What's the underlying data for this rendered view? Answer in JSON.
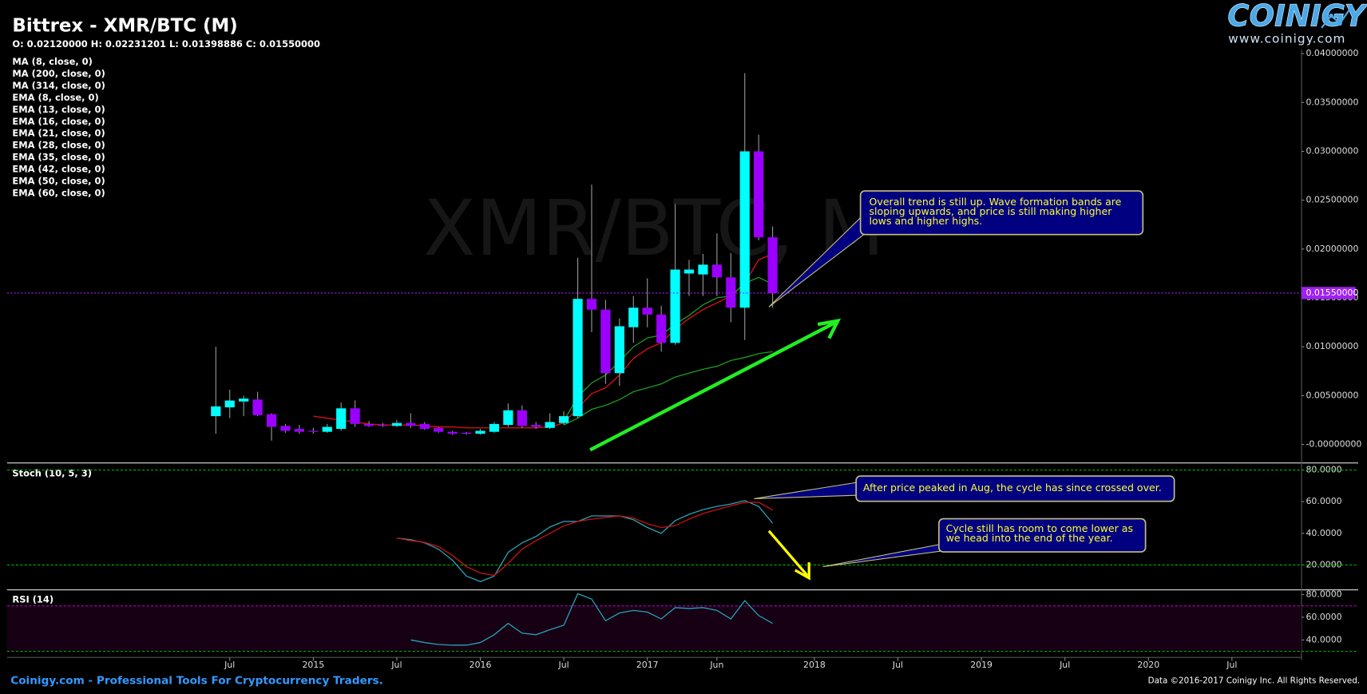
{
  "header": {
    "brand": "COINIGY",
    "url": "www.coinigy.com"
  },
  "chart_data": [
    {
      "type": "candlestick",
      "title": "Bittrex - XMR/BTC (M)",
      "subtitle": "O: 0.02120000 H: 0.02231201 L: 0.01398886 C: 0.01550000",
      "watermark": "XMR/BTC, M",
      "x": [
        "2014-06",
        "2014-07",
        "2014-08",
        "2014-09",
        "2014-10",
        "2014-11",
        "2014-12",
        "2015-01",
        "2015-02",
        "2015-03",
        "2015-04",
        "2015-05",
        "2015-06",
        "2015-07",
        "2015-08",
        "2015-09",
        "2015-10",
        "2015-11",
        "2015-12",
        "2016-01",
        "2016-02",
        "2016-03",
        "2016-04",
        "2016-05",
        "2016-06",
        "2016-07",
        "2016-08",
        "2016-09",
        "2016-10",
        "2016-11",
        "2016-12",
        "2017-01",
        "2017-02",
        "2017-03",
        "2017-04",
        "2017-05",
        "2017-06",
        "2017-07",
        "2017-08",
        "2017-09",
        "2017-10"
      ],
      "open": [
        0.0029,
        0.0038,
        0.0044,
        0.0046,
        0.0031,
        0.0019,
        0.0016,
        0.0014,
        0.0013,
        0.0016,
        0.0037,
        0.0021,
        0.002,
        0.0019,
        0.0022,
        0.0021,
        0.0017,
        0.0013,
        0.0012,
        0.0011,
        0.0013,
        0.002,
        0.0035,
        0.002,
        0.0017,
        0.0022,
        0.0029,
        0.0149,
        0.0138,
        0.0073,
        0.012,
        0.014,
        0.0133,
        0.0104,
        0.0175,
        0.0174,
        0.0184,
        0.0171,
        0.014,
        0.03,
        0.0212
      ],
      "high": [
        0.01,
        0.0056,
        0.005,
        0.0054,
        0.0032,
        0.0021,
        0.002,
        0.0017,
        0.0021,
        0.0043,
        0.0045,
        0.0024,
        0.0022,
        0.0025,
        0.0032,
        0.0023,
        0.0018,
        0.0014,
        0.0013,
        0.0016,
        0.0023,
        0.0042,
        0.004,
        0.0023,
        0.0032,
        0.0034,
        0.0191,
        0.0266,
        0.0148,
        0.0129,
        0.0152,
        0.017,
        0.0142,
        0.0246,
        0.0189,
        0.0195,
        0.0216,
        0.0196,
        0.038,
        0.0317,
        0.02231201
      ],
      "low": [
        0.0011,
        0.0027,
        0.0029,
        0.0029,
        0.0004,
        0.0012,
        0.0011,
        0.0011,
        0.0012,
        0.0014,
        0.0018,
        0.0018,
        0.0018,
        0.0018,
        0.0017,
        0.0015,
        0.0012,
        0.001,
        0.001,
        0.001,
        0.0012,
        0.0018,
        0.0017,
        0.0016,
        0.0016,
        0.002,
        0.0027,
        0.0115,
        0.0062,
        0.006,
        0.0104,
        0.012,
        0.0095,
        0.0102,
        0.0152,
        0.0152,
        0.0152,
        0.0125,
        0.0107,
        0.0209,
        0.01398886
      ],
      "close": [
        0.0039,
        0.0045,
        0.0047,
        0.003,
        0.0018,
        0.0014,
        0.0013,
        0.0013,
        0.0018,
        0.0037,
        0.0021,
        0.0019,
        0.0019,
        0.0022,
        0.0019,
        0.0016,
        0.0013,
        0.0011,
        0.0011,
        0.0014,
        0.0021,
        0.0035,
        0.0019,
        0.0018,
        0.0023,
        0.0029,
        0.0149,
        0.0138,
        0.0073,
        0.0121,
        0.014,
        0.0133,
        0.0104,
        0.0179,
        0.0179,
        0.0184,
        0.0171,
        0.014,
        0.03,
        0.0212,
        0.0155
      ],
      "up_color": "#00ffff",
      "down_color": "#9b00ff",
      "wick_color": "#9a9a9a",
      "series": [
        {
          "name": "MA (8, close, 0)",
          "color": "#e01010",
          "values": [
            null,
            null,
            null,
            null,
            null,
            null,
            null,
            0.0029,
            0.0027,
            0.0025,
            0.0023,
            0.0021,
            0.002,
            0.002,
            0.002,
            0.0019,
            0.0018,
            0.0018,
            0.0017,
            0.0017,
            0.0017,
            0.0017,
            0.0017,
            0.0017,
            0.0018,
            0.0022,
            0.0037,
            0.0052,
            0.0058,
            0.0071,
            0.0088,
            0.0098,
            0.0104,
            0.0118,
            0.0129,
            0.0138,
            0.0145,
            0.0152,
            0.0165,
            0.0189,
            0.0195
          ]
        },
        {
          "name": "MA (200, close, 0)"
        },
        {
          "name": "MA (314, close, 0)"
        },
        {
          "name": "EMA (8, close, 0)"
        },
        {
          "name": "EMA (13, close, 0)",
          "color": "#1f9a1f",
          "values": [
            null,
            null,
            null,
            null,
            null,
            null,
            null,
            null,
            null,
            null,
            null,
            null,
            null,
            null,
            null,
            null,
            null,
            null,
            null,
            null,
            null,
            null,
            null,
            null,
            null,
            0.0024,
            0.0049,
            0.0063,
            0.0071,
            0.0085,
            0.01,
            0.0109,
            0.0112,
            0.0123,
            0.0132,
            0.0143,
            0.015,
            0.0152,
            0.0165,
            0.0171,
            0.0164
          ]
        },
        {
          "name": "EMA (16, close, 0)"
        },
        {
          "name": "EMA (21, close, 0)"
        },
        {
          "name": "EMA (28, close, 0)"
        },
        {
          "name": "EMA (35, close, 0)"
        },
        {
          "name": "EMA (42, close, 0)"
        },
        {
          "name": "EMA (50, close, 0)"
        },
        {
          "name": "EMA (60, close, 0)",
          "color": "#1f9a1f",
          "values": [
            null,
            null,
            null,
            null,
            null,
            null,
            null,
            null,
            null,
            null,
            null,
            null,
            null,
            null,
            null,
            null,
            null,
            null,
            null,
            null,
            null,
            null,
            null,
            null,
            null,
            0.002,
            0.0027,
            0.0036,
            0.004,
            0.0046,
            0.0054,
            0.0058,
            0.0062,
            0.0069,
            0.0073,
            0.0077,
            0.008,
            0.0086,
            0.0089,
            0.0093,
            0.0095
          ]
        }
      ],
      "ylim": [
        -0.0018,
        0.0404
      ],
      "yticks": [
        {
          "value": 0.04,
          "label": "0.04000000"
        },
        {
          "value": 0.035,
          "label": "0.03500000"
        },
        {
          "value": 0.03,
          "label": "0.03000000"
        },
        {
          "value": 0.025,
          "label": "0.02500000"
        },
        {
          "value": 0.02,
          "label": "0.02000000"
        },
        {
          "value": 0.015,
          "label": "0.01500000"
        },
        {
          "value": 0.01,
          "label": "0.01000000"
        },
        {
          "value": 0.005,
          "label": "0.00500000"
        },
        {
          "value": 0,
          "label": "-0.00000000"
        }
      ],
      "xlim": [
        "2013-03",
        "2020-12"
      ],
      "xticks": [
        {
          "value": "2014-07",
          "label": "Jul"
        },
        {
          "value": "2015-01",
          "label": "2015"
        },
        {
          "value": "2015-07",
          "label": "Jul"
        },
        {
          "value": "2016-01",
          "label": "2016"
        },
        {
          "value": "2016-07",
          "label": "Jul"
        },
        {
          "value": "2017-01",
          "label": "2017"
        },
        {
          "value": "2017-06",
          "label": "Jun"
        },
        {
          "value": "2018-01",
          "label": "2018"
        },
        {
          "value": "2018-07",
          "label": "Jul"
        },
        {
          "value": "2019-01",
          "label": "2019"
        },
        {
          "value": "2019-07",
          "label": "Jul"
        },
        {
          "value": "2020-01",
          "label": "2020"
        },
        {
          "value": "2020-07",
          "label": "Jul"
        }
      ],
      "last_price": {
        "value": 0.0155,
        "label": "0.01550000",
        "color": "#a020f0"
      }
    },
    {
      "type": "line",
      "title": "Stoch (10, 5, 3)",
      "x": [
        "2015-07",
        "2015-08",
        "2015-09",
        "2015-10",
        "2015-11",
        "2015-12",
        "2016-01",
        "2016-02",
        "2016-03",
        "2016-04",
        "2016-05",
        "2016-06",
        "2016-07",
        "2016-08",
        "2016-09",
        "2016-10",
        "2016-11",
        "2016-12",
        "2017-01",
        "2017-02",
        "2017-03",
        "2017-04",
        "2017-05",
        "2017-06",
        "2017-07",
        "2017-08",
        "2017-09",
        "2017-10"
      ],
      "series": [
        {
          "color": "#2aa0b4",
          "values": [
            37,
            36,
            34,
            30,
            23,
            13,
            9.5,
            13,
            28,
            34,
            38,
            44,
            47.5,
            47.5,
            51,
            51,
            51,
            48.6,
            43.7,
            40,
            48,
            52,
            55,
            57,
            58.5,
            60.7,
            57,
            46.4
          ]
        },
        {
          "color": "#cc1111",
          "values": [
            37,
            35.4,
            34.3,
            31.6,
            26,
            19,
            15,
            13.4,
            21,
            30,
            35.4,
            40,
            44.8,
            47.5,
            49,
            50,
            51,
            49.7,
            46,
            43.7,
            44.8,
            49,
            52.5,
            55,
            57.4,
            59.6,
            59.6,
            54.7
          ]
        }
      ],
      "levels": [
        80,
        20
      ],
      "level_colors": [
        "#00b000",
        "#00b000"
      ],
      "ylim": [
        4.6,
        83.9
      ],
      "yticks": [
        {
          "value": 80,
          "label": "80.0000"
        },
        {
          "value": 60,
          "label": "60.0000"
        },
        {
          "value": 40,
          "label": "40.0000"
        },
        {
          "value": 20,
          "label": "20.0000"
        }
      ]
    },
    {
      "type": "line",
      "title": "RSI (14)",
      "x": [
        "2015-08",
        "2015-09",
        "2015-10",
        "2015-11",
        "2015-12",
        "2016-01",
        "2016-02",
        "2016-03",
        "2016-04",
        "2016-05",
        "2016-06",
        "2016-07",
        "2016-08",
        "2016-09",
        "2016-10",
        "2016-11",
        "2016-12",
        "2017-01",
        "2017-02",
        "2017-03",
        "2017-04",
        "2017-05",
        "2017-06",
        "2017-07",
        "2017-08",
        "2017-09",
        "2017-10"
      ],
      "series": [
        {
          "color": "#2aa0b4",
          "values": [
            40,
            37.7,
            36,
            35.4,
            35.4,
            37.7,
            44.6,
            54.6,
            46,
            44.6,
            49,
            53,
            80.8,
            76,
            56.9,
            63.8,
            66,
            64.6,
            58.5,
            68.5,
            67.7,
            68.5,
            66,
            58.5,
            74.6,
            61.5,
            54.6
          ]
        }
      ],
      "levels": [
        70,
        30
      ],
      "level_colors": [
        "#b000c0",
        "#00b000"
      ],
      "band_color": "#170014",
      "ylim": [
        27.7,
        83.8
      ],
      "yticks": [
        {
          "value": 80,
          "label": "80.0000"
        },
        {
          "value": 60,
          "label": "60.0000"
        },
        {
          "value": 40,
          "label": "40.0000"
        }
      ]
    }
  ],
  "annotations": [
    {
      "lines": [
        "Overall trend is still up.  Wave formation bands are",
        "sloping upwards, and price is still making higher",
        "lows and higher highs."
      ]
    },
    {
      "lines": [
        "After price peaked in Aug, the cycle has since crossed over."
      ]
    },
    {
      "lines": [
        "Cycle still has room to come lower as",
        "we head into the end of the year."
      ]
    }
  ],
  "footer": {
    "left": "Coinigy.com - Professional Tools For Cryptocurrency Traders.",
    "right": "Data ©2016-2017 Coinigy Inc. All Rights Reserved."
  }
}
